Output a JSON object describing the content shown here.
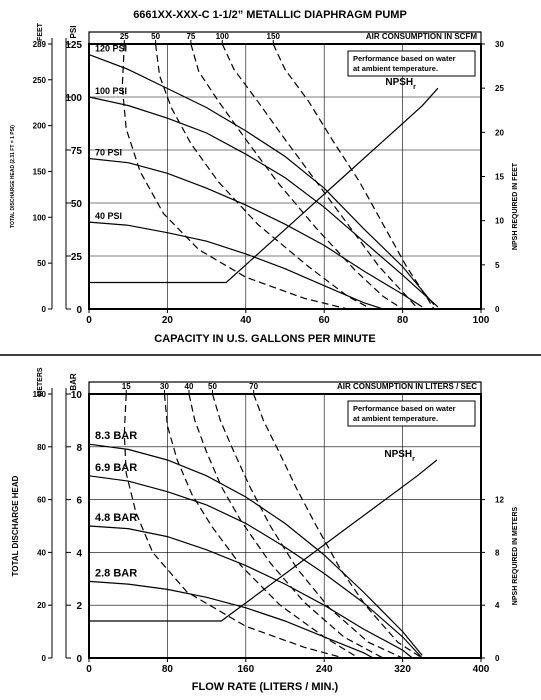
{
  "chart_data": [
    {
      "type": "line",
      "title": "6661XX-XXX-C   1-1/2” METALLIC DIAPHRAGM PUMP",
      "xlabel": "CAPACITY IN U.S. GALLONS PER MINUTE",
      "xlim": [
        0,
        100
      ],
      "x_ticks": [
        0,
        20,
        40,
        60,
        80,
        100
      ],
      "ylim": [
        0,
        125
      ],
      "y_psi_ticks": [
        0,
        25,
        50,
        75,
        100,
        125
      ],
      "y_left_unit": "PSI",
      "y_feet_unit": "FEET",
      "y_feet_ticks": [
        "0",
        "50",
        "100",
        "150",
        "200",
        "250",
        "289"
      ],
      "y_feet_label": "TOTAL DISCHARGE HEAD (2.31 FT = 1 PSI)",
      "y_right_label": "NPSH REQUIRED IN FEET",
      "y_right_ticks": [
        0,
        5,
        10,
        15,
        20,
        25,
        30
      ],
      "y_right_lim": [
        0,
        30
      ],
      "top_axis_label": "AIR CONSUMPTION IN SCFM",
      "top_ticks": [
        "25",
        "50",
        "75",
        "100",
        "150"
      ],
      "top_ticks_at_x": [
        9,
        17,
        26,
        34,
        47
      ],
      "note": [
        "Performance based on water",
        "at ambient temperature."
      ],
      "grid": true,
      "npsh_label": "NPSH",
      "npsh_sub": "r",
      "series": [
        {
          "name": "120 PSI",
          "points": [
            [
              0,
              120
            ],
            [
              10,
              113
            ],
            [
              20,
              104
            ],
            [
              30,
              95
            ],
            [
              40,
              84
            ],
            [
              50,
              72
            ],
            [
              60,
              57
            ],
            [
              70,
              38
            ],
            [
              80,
              20
            ],
            [
              88,
              2
            ]
          ]
        },
        {
          "name": "100 PSI",
          "points": [
            [
              0,
              100
            ],
            [
              10,
              96
            ],
            [
              20,
              90
            ],
            [
              30,
              83
            ],
            [
              40,
              73
            ],
            [
              50,
              62
            ],
            [
              60,
              48
            ],
            [
              70,
              32
            ],
            [
              80,
              16
            ],
            [
              89,
              1
            ]
          ]
        },
        {
          "name": "70 PSI",
          "points": [
            [
              0,
              71
            ],
            [
              10,
              69
            ],
            [
              20,
              64
            ],
            [
              30,
              57
            ],
            [
              40,
              49
            ],
            [
              50,
              40
            ],
            [
              60,
              30
            ],
            [
              70,
              18
            ],
            [
              80,
              7
            ],
            [
              85,
              1
            ]
          ]
        },
        {
          "name": "40 PSI",
          "points": [
            [
              0,
              41
            ],
            [
              10,
              39.5
            ],
            [
              20,
              36
            ],
            [
              30,
              32
            ],
            [
              40,
              26
            ],
            [
              50,
              19
            ],
            [
              60,
              11
            ],
            [
              70,
              3
            ],
            [
              75,
              0
            ]
          ]
        }
      ],
      "air_curves": [
        {
          "name": "25",
          "points": [
            [
              9,
              125
            ],
            [
              8.5,
              105
            ],
            [
              9.5,
              85
            ],
            [
              13,
              65
            ],
            [
              19,
              45
            ],
            [
              28,
              28
            ],
            [
              40,
              15
            ],
            [
              55,
              5
            ],
            [
              66,
              0
            ]
          ]
        },
        {
          "name": "50",
          "points": [
            [
              17,
              125
            ],
            [
              18,
              110
            ],
            [
              21,
              95
            ],
            [
              26,
              78
            ],
            [
              33,
              60
            ],
            [
              43,
              40
            ],
            [
              56,
              20
            ],
            [
              66,
              6
            ],
            [
              72,
              0
            ]
          ]
        },
        {
          "name": "75",
          "points": [
            [
              26,
              125
            ],
            [
              28,
              112
            ],
            [
              33,
              98
            ],
            [
              40,
              80
            ],
            [
              48,
              60
            ],
            [
              58,
              38
            ],
            [
              68,
              18
            ],
            [
              75,
              6
            ],
            [
              80,
              0
            ]
          ]
        },
        {
          "name": "100",
          "points": [
            [
              34,
              125
            ],
            [
              37,
              113
            ],
            [
              43,
              98
            ],
            [
              50,
              80
            ],
            [
              58,
              60
            ],
            [
              66,
              40
            ],
            [
              74,
              20
            ],
            [
              80,
              8
            ],
            [
              84,
              0
            ]
          ]
        },
        {
          "name": "150",
          "points": [
            [
              47,
              125
            ],
            [
              50,
              113
            ],
            [
              56,
              98
            ],
            [
              62,
              80
            ],
            [
              69,
              60
            ],
            [
              75,
              40
            ],
            [
              81,
              20
            ],
            [
              86,
              6
            ],
            [
              88,
              0
            ]
          ]
        }
      ],
      "npsh_curve": [
        [
          0,
          3
        ],
        [
          35,
          3
        ],
        [
          45,
          7
        ],
        [
          55,
          11
        ],
        [
          65,
          15
        ],
        [
          75,
          19
        ],
        [
          85,
          23
        ],
        [
          89,
          25
        ]
      ]
    },
    {
      "type": "line",
      "xlabel": "FLOW RATE (LITERS / MIN.)",
      "xlim": [
        0,
        400
      ],
      "x_ticks": [
        0,
        80,
        160,
        240,
        320,
        400
      ],
      "ylim": [
        0,
        10
      ],
      "y_bar_ticks": [
        0,
        2,
        4,
        6,
        8,
        10
      ],
      "y_left_unit": "BAR",
      "y_meters_unit": "METERS",
      "y_meters_ticks": [
        "0",
        "20",
        "40",
        "60",
        "80",
        "100"
      ],
      "y_meters_label": "TOTAL DISCHARGE HEAD",
      "y_right_label": "NPSH REQUIRED IN METERS",
      "y_right_ticks": [
        0,
        4,
        8,
        12
      ],
      "y_right_lim": [
        0,
        20
      ],
      "top_axis_label": "AIR CONSUMPTION IN LITERS / SEC",
      "top_ticks": [
        "15",
        "30",
        "40",
        "50",
        "70"
      ],
      "top_ticks_at_x": [
        38,
        77,
        102,
        126,
        168
      ],
      "note": [
        "Performance based on water",
        "at ambient temperature."
      ],
      "grid": true,
      "npsh_label": "NPSH",
      "npsh_sub": "r",
      "series": [
        {
          "name": "8.3 BAR",
          "points": [
            [
              0,
              8.1
            ],
            [
              40,
              7.9
            ],
            [
              80,
              7.5
            ],
            [
              120,
              6.9
            ],
            [
              160,
              6.1
            ],
            [
              200,
              5.1
            ],
            [
              240,
              3.9
            ],
            [
              280,
              2.5
            ],
            [
              320,
              1.0
            ],
            [
              340,
              0.1
            ]
          ]
        },
        {
          "name": "6.9 BAR",
          "points": [
            [
              0,
              6.9
            ],
            [
              40,
              6.7
            ],
            [
              80,
              6.3
            ],
            [
              120,
              5.8
            ],
            [
              160,
              5.1
            ],
            [
              200,
              4.2
            ],
            [
              240,
              3.2
            ],
            [
              280,
              2.1
            ],
            [
              320,
              0.8
            ],
            [
              340,
              0
            ]
          ]
        },
        {
          "name": "4.8 BAR",
          "points": [
            [
              0,
              5.0
            ],
            [
              40,
              4.9
            ],
            [
              80,
              4.6
            ],
            [
              120,
              4.1
            ],
            [
              160,
              3.5
            ],
            [
              200,
              2.8
            ],
            [
              240,
              2.0
            ],
            [
              280,
              1.1
            ],
            [
              320,
              0.3
            ],
            [
              330,
              0
            ]
          ]
        },
        {
          "name": "2.8 BAR",
          "points": [
            [
              0,
              2.9
            ],
            [
              40,
              2.8
            ],
            [
              80,
              2.6
            ],
            [
              120,
              2.3
            ],
            [
              160,
              1.9
            ],
            [
              200,
              1.4
            ],
            [
              240,
              0.8
            ],
            [
              280,
              0.2
            ],
            [
              290,
              0
            ]
          ]
        }
      ],
      "air_curves": [
        {
          "name": "15",
          "points": [
            [
              38,
              10
            ],
            [
              36,
              8.5
            ],
            [
              38,
              7
            ],
            [
              48,
              5.5
            ],
            [
              65,
              4
            ],
            [
              100,
              2.5
            ],
            [
              160,
              1.2
            ],
            [
              220,
              0.4
            ],
            [
              260,
              0
            ]
          ]
        },
        {
          "name": "30",
          "points": [
            [
              77,
              10
            ],
            [
              80,
              8.8
            ],
            [
              90,
              7.5
            ],
            [
              105,
              6.2
            ],
            [
              125,
              5
            ],
            [
              155,
              3.5
            ],
            [
              195,
              2
            ],
            [
              240,
              0.8
            ],
            [
              275,
              0
            ]
          ]
        },
        {
          "name": "40",
          "points": [
            [
              102,
              10
            ],
            [
              108,
              9
            ],
            [
              120,
              7.8
            ],
            [
              135,
              6.5
            ],
            [
              155,
              5.2
            ],
            [
              185,
              3.6
            ],
            [
              220,
              2.1
            ],
            [
              260,
              0.8
            ],
            [
              300,
              0
            ]
          ]
        },
        {
          "name": "50",
          "points": [
            [
              126,
              10
            ],
            [
              134,
              9
            ],
            [
              148,
              7.8
            ],
            [
              164,
              6.5
            ],
            [
              185,
              5
            ],
            [
              212,
              3.4
            ],
            [
              245,
              1.9
            ],
            [
              285,
              0.6
            ],
            [
              320,
              0
            ]
          ]
        },
        {
          "name": "70",
          "points": [
            [
              168,
              10
            ],
            [
              178,
              9
            ],
            [
              194,
              7.8
            ],
            [
              212,
              6.4
            ],
            [
              232,
              5
            ],
            [
              256,
              3.4
            ],
            [
              282,
              2
            ],
            [
              315,
              0.6
            ],
            [
              340,
              0
            ]
          ]
        }
      ],
      "npsh_curve": [
        [
          0,
          2.8
        ],
        [
          135,
          2.8
        ],
        [
          175,
          5
        ],
        [
          215,
          7.2
        ],
        [
          255,
          9.4
        ],
        [
          295,
          11.6
        ],
        [
          335,
          13.8
        ],
        [
          355,
          15
        ]
      ]
    }
  ]
}
